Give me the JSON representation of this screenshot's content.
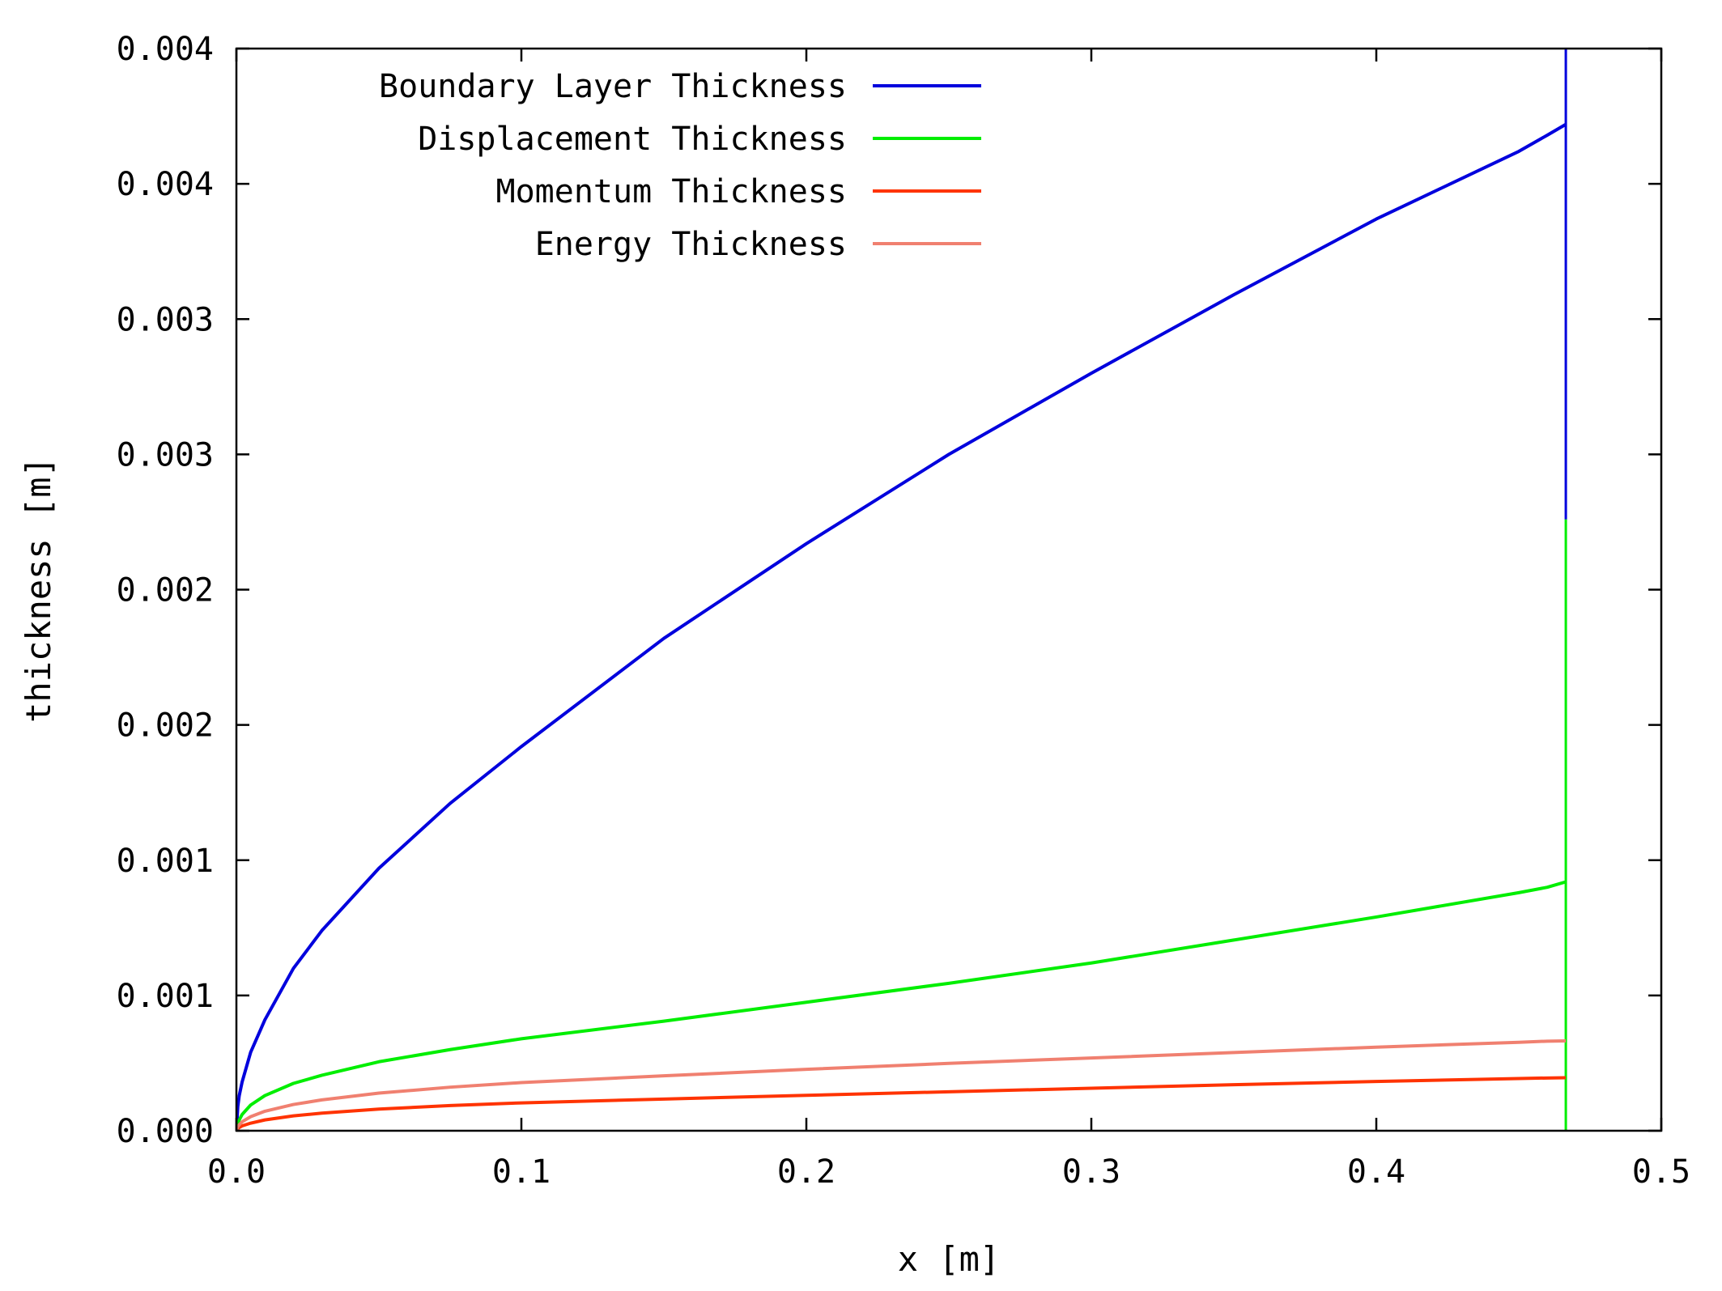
{
  "chart_data": {
    "type": "line",
    "title": "",
    "xlabel": "x [m]",
    "ylabel": "thickness [m]",
    "xlim": [
      0,
      0.5
    ],
    "ylim": [
      0,
      0.004
    ],
    "x_ticks": [
      {
        "value": 0.0,
        "label": "0.0"
      },
      {
        "value": 0.1,
        "label": "0.1"
      },
      {
        "value": 0.2,
        "label": "0.2"
      },
      {
        "value": 0.3,
        "label": "0.3"
      },
      {
        "value": 0.4,
        "label": "0.4"
      },
      {
        "value": 0.5,
        "label": "0.5"
      }
    ],
    "y_ticks": [
      {
        "value": 0.0,
        "label": "0.000"
      },
      {
        "value": 0.0005,
        "label": "0.001"
      },
      {
        "value": 0.001,
        "label": "0.001"
      },
      {
        "value": 0.0015,
        "label": "0.002"
      },
      {
        "value": 0.002,
        "label": "0.002"
      },
      {
        "value": 0.0025,
        "label": "0.003"
      },
      {
        "value": 0.003,
        "label": "0.003"
      },
      {
        "value": 0.0035,
        "label": "0.004"
      },
      {
        "value": 0.004,
        "label": "0.004"
      }
    ],
    "grid": false,
    "legend_position": "top-left",
    "plate_end_x": 0.4665,
    "series": [
      {
        "name": "Boundary Layer Thickness",
        "color": "#0000dd",
        "x": [
          0,
          0.0005,
          0.001,
          0.002,
          0.005,
          0.01,
          0.02,
          0.03,
          0.05,
          0.075,
          0.1,
          0.15,
          0.2,
          0.25,
          0.3,
          0.35,
          0.4,
          0.45,
          0.46,
          0.4665
        ],
        "y": [
          0,
          9e-05,
          0.00013,
          0.00018,
          0.00029,
          0.00041,
          0.0006,
          0.00074,
          0.00097,
          0.00121,
          0.00142,
          0.00182,
          0.00217,
          0.0025,
          0.0028,
          0.00309,
          0.00337,
          0.00362,
          0.00368,
          0.00372
        ]
      },
      {
        "name": "Displacement Thickness",
        "color": "#00ee00",
        "x": [
          0,
          0.0005,
          0.001,
          0.002,
          0.005,
          0.01,
          0.02,
          0.03,
          0.05,
          0.075,
          0.1,
          0.15,
          0.2,
          0.25,
          0.3,
          0.35,
          0.4,
          0.45,
          0.46,
          0.4665
        ],
        "y": [
          0,
          2.5e-05,
          4e-05,
          6e-05,
          9.5e-05,
          0.00013,
          0.000175,
          0.000205,
          0.000255,
          0.0003,
          0.00034,
          0.000405,
          0.000475,
          0.000545,
          0.00062,
          0.000705,
          0.00079,
          0.00088,
          0.0009,
          0.00092
        ]
      },
      {
        "name": "Momentum Thickness",
        "color": "#ff3300",
        "x": [
          0,
          0.0005,
          0.001,
          0.002,
          0.005,
          0.01,
          0.02,
          0.03,
          0.05,
          0.075,
          0.1,
          0.15,
          0.2,
          0.25,
          0.3,
          0.35,
          0.4,
          0.45,
          0.46,
          0.4665
        ],
        "y": [
          0,
          8e-06,
          1.2e-05,
          1.8e-05,
          2.8e-05,
          4e-05,
          5.5e-05,
          6.5e-05,
          8e-05,
          9.3e-05,
          0.000103,
          0.000117,
          0.000131,
          0.000144,
          0.000157,
          0.00017,
          0.000182,
          0.000193,
          0.000195,
          0.000196
        ]
      },
      {
        "name": "Energy Thickness",
        "color": "#f08070",
        "x": [
          0,
          0.0005,
          0.001,
          0.002,
          0.005,
          0.01,
          0.02,
          0.03,
          0.05,
          0.075,
          0.1,
          0.15,
          0.2,
          0.25,
          0.3,
          0.35,
          0.4,
          0.45,
          0.46,
          0.4665
        ],
        "y": [
          0,
          1.5e-05,
          2.2e-05,
          3.3e-05,
          5.2e-05,
          7.2e-05,
          9.7e-05,
          0.000114,
          0.000139,
          0.000161,
          0.000178,
          0.000203,
          0.000227,
          0.000249,
          0.000269,
          0.000289,
          0.000309,
          0.000327,
          0.000331,
          0.000332
        ]
      }
    ]
  }
}
